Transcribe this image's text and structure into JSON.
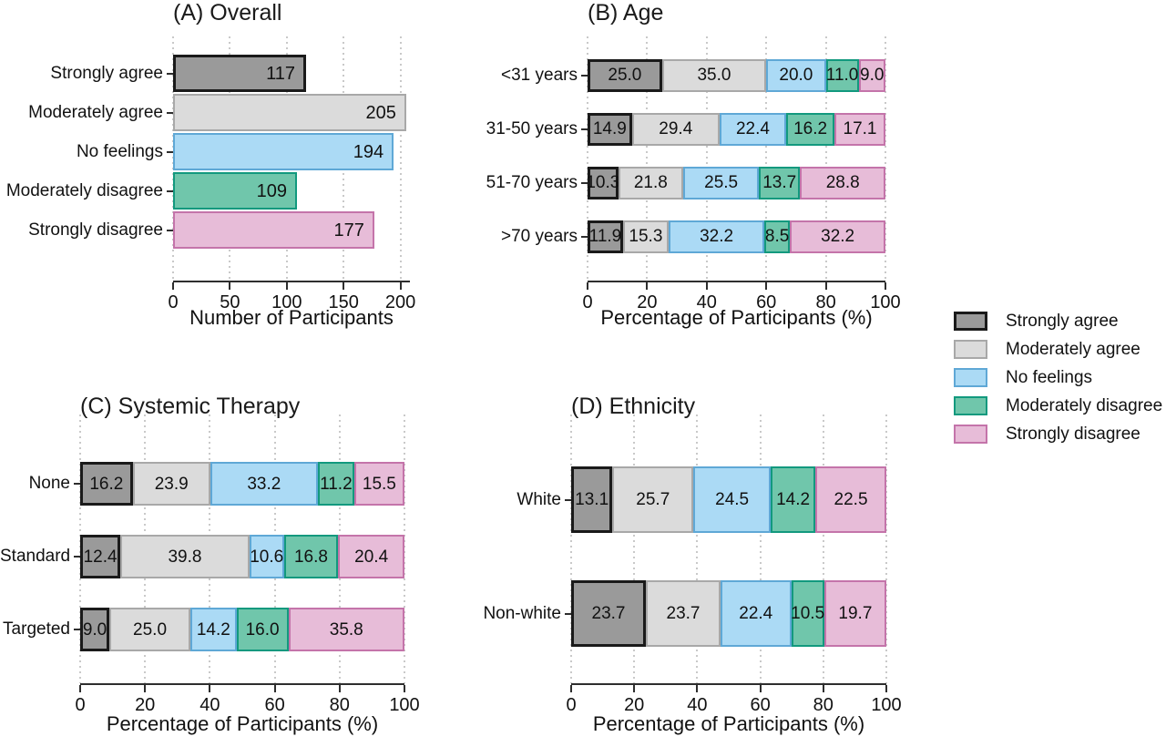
{
  "legend": {
    "items": [
      {
        "label": "Strongly agree"
      },
      {
        "label": "Moderately agree"
      },
      {
        "label": "No feelings"
      },
      {
        "label": "Moderately disagree"
      },
      {
        "label": "Strongly disagree"
      }
    ]
  },
  "colors": {
    "series": [
      {
        "name": "Strongly agree",
        "fill": "#9A9A9A",
        "border": "#1A1A1A"
      },
      {
        "name": "Moderately agree",
        "fill": "#DBDBDB",
        "border": "#A8A8A8"
      },
      {
        "name": "No feelings",
        "fill": "#ABDAF5",
        "border": "#5FA8D6"
      },
      {
        "name": "Moderately disagree",
        "fill": "#70C6AB",
        "border": "#12997E"
      },
      {
        "name": "Strongly disagree",
        "fill": "#E7BCD8",
        "border": "#C474AA"
      }
    ],
    "gridline": "#C9C9C9",
    "axis": "#2E2E2E"
  },
  "chart_data": [
    {
      "id": "overall",
      "type": "bar",
      "title": "(A) Overall",
      "xlabel": "Number of Participants",
      "xlim": [
        0,
        200
      ],
      "xticks": [
        0,
        50,
        100,
        150,
        200
      ],
      "grid": true,
      "legend_position": "right",
      "categories": [
        "Strongly agree",
        "Moderately agree",
        "No feelings",
        "Moderately disagree",
        "Strongly disagree"
      ],
      "values": [
        117,
        205,
        194,
        109,
        177
      ]
    },
    {
      "id": "age",
      "type": "stacked_bar",
      "title": "(B) Age",
      "xlabel": "Percentage of Participants (%)",
      "xlim": [
        0,
        100
      ],
      "xticks": [
        0,
        20,
        40,
        60,
        80,
        100
      ],
      "grid": true,
      "categories": [
        "<31 years",
        "31-50 years",
        "51-70 years",
        ">70 years"
      ],
      "series": [
        {
          "name": "Strongly agree",
          "values": [
            25.0,
            14.9,
            10.3,
            11.9
          ]
        },
        {
          "name": "Moderately agree",
          "values": [
            35.0,
            29.4,
            21.8,
            15.3
          ]
        },
        {
          "name": "No feelings",
          "values": [
            20.0,
            22.4,
            25.5,
            32.2
          ]
        },
        {
          "name": "Moderately disagree",
          "values": [
            11.0,
            16.2,
            13.7,
            8.5
          ]
        },
        {
          "name": "Strongly disagree",
          "values": [
            9.0,
            17.1,
            28.8,
            32.2
          ]
        }
      ]
    },
    {
      "id": "systemic_therapy",
      "type": "stacked_bar",
      "title": "(C) Systemic Therapy",
      "xlabel": "Percentage of Participants (%)",
      "xlim": [
        0,
        100
      ],
      "xticks": [
        0,
        20,
        40,
        60,
        80,
        100
      ],
      "grid": true,
      "categories": [
        "None",
        "Standard",
        "Targeted"
      ],
      "series": [
        {
          "name": "Strongly agree",
          "values": [
            16.2,
            12.4,
            9.0
          ]
        },
        {
          "name": "Moderately agree",
          "values": [
            23.9,
            39.8,
            25.0
          ]
        },
        {
          "name": "No feelings",
          "values": [
            33.2,
            10.6,
            14.2
          ]
        },
        {
          "name": "Moderately disagree",
          "values": [
            11.2,
            16.8,
            16.0
          ]
        },
        {
          "name": "Strongly disagree",
          "values": [
            15.5,
            20.4,
            35.8
          ]
        }
      ]
    },
    {
      "id": "ethnicity",
      "type": "stacked_bar",
      "title": "(D) Ethnicity",
      "xlabel": "Percentage of Participants (%)",
      "xlim": [
        0,
        100
      ],
      "xticks": [
        0,
        20,
        40,
        60,
        80,
        100
      ],
      "grid": true,
      "categories": [
        "White",
        "Non-white"
      ],
      "series": [
        {
          "name": "Strongly agree",
          "values": [
            13.1,
            23.7
          ]
        },
        {
          "name": "Moderately agree",
          "values": [
            25.7,
            23.7
          ]
        },
        {
          "name": "No feelings",
          "values": [
            24.5,
            22.4
          ]
        },
        {
          "name": "Moderately disagree",
          "values": [
            14.2,
            10.5
          ]
        },
        {
          "name": "Strongly disagree",
          "values": [
            22.5,
            19.7
          ]
        }
      ]
    }
  ]
}
